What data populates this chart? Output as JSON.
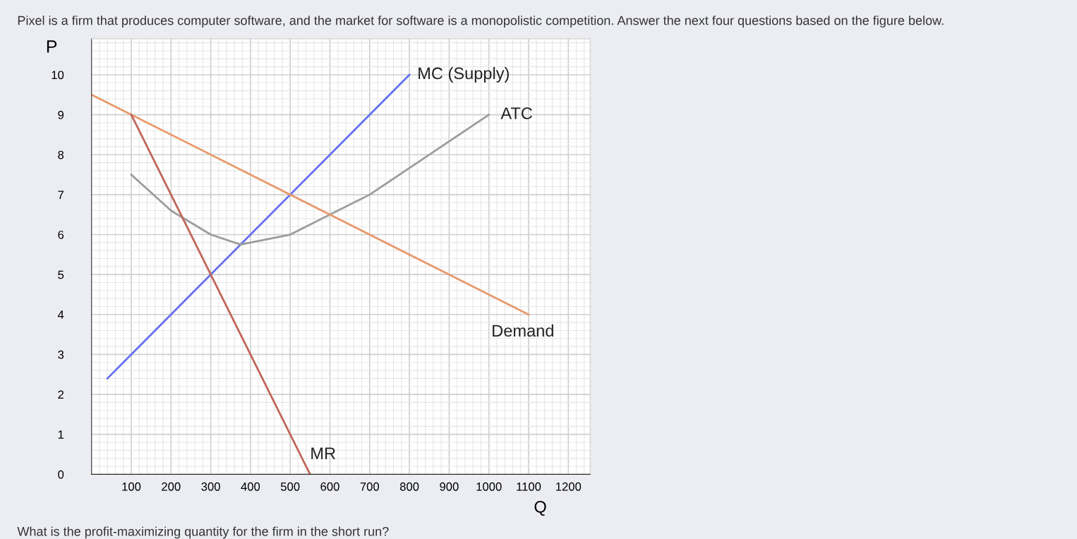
{
  "chart_data": {
    "type": "line",
    "title": "Pixel is a firm that produces computer software, and the market for software is a monopolistic competition. Answer the next four questions based on the figure below.",
    "xlabel": "Q",
    "ylabel": "P",
    "annotations": [
      "What is the profit-maximizing quantity for the firm in the short run?"
    ],
    "xlim": [
      0,
      1255
    ],
    "ylim": [
      0,
      10.9
    ],
    "xticks": [
      100,
      200,
      300,
      400,
      500,
      600,
      700,
      800,
      900,
      1000,
      1100,
      1200
    ],
    "yticks": [
      0,
      1,
      2,
      3,
      4,
      5,
      6,
      7,
      8,
      9,
      10
    ],
    "grid": true,
    "marker": "none",
    "line_style": "solid",
    "series": [
      {
        "name": "MC (Supply)",
        "color": "#6470f0",
        "x": [
          40,
          800
        ],
        "values": [
          2.4,
          10
        ]
      },
      {
        "name": "ATC",
        "color": "#9c9c9c",
        "x": [
          100,
          200,
          300,
          375,
          500,
          700,
          1000
        ],
        "values": [
          7.5,
          6.6,
          6,
          5.75,
          6,
          7,
          9
        ]
      },
      {
        "name": "Demand",
        "color": "#e89a6c",
        "x": [
          0,
          1100
        ],
        "values": [
          9.5,
          4
        ]
      },
      {
        "name": "MR",
        "color": "#c0665a",
        "x": [
          100,
          550
        ],
        "values": [
          9,
          0
        ]
      }
    ]
  }
}
